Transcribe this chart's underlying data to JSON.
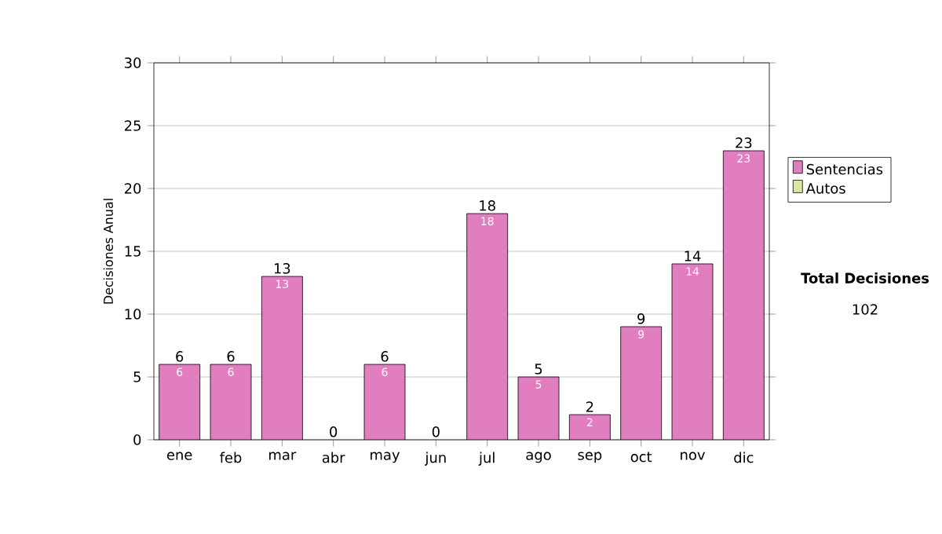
{
  "chart_data": {
    "type": "bar",
    "ylabel": "Decisiones Anual",
    "categories": [
      "ene",
      "feb",
      "mar",
      "abr",
      "may",
      "jun",
      "jul",
      "ago",
      "sep",
      "oct",
      "nov",
      "dic"
    ],
    "stacked": true,
    "series": [
      {
        "name": "Sentencias",
        "color": "#e07ec0",
        "values": [
          6,
          6,
          13,
          0,
          6,
          0,
          18,
          5,
          2,
          9,
          14,
          23
        ],
        "value_labels": [
          "6",
          "6",
          "13",
          null,
          "6",
          null,
          "18",
          "5",
          "2",
          "9",
          "14",
          "23"
        ]
      },
      {
        "name": "Autos",
        "color": "#d8e8a0",
        "values": [
          0,
          0,
          0,
          0,
          0,
          0,
          0,
          0,
          0,
          0,
          0,
          0
        ]
      }
    ],
    "totals": [
      "6",
      "6",
      "13",
      "0",
      "6",
      "0",
      "18",
      "5",
      "2",
      "9",
      "14",
      "23"
    ],
    "ylim": [
      0,
      30
    ],
    "yticks": [
      0,
      5,
      10,
      15,
      20,
      25,
      30
    ],
    "grid": "y",
    "legend": "right",
    "annotations": [
      "**Total Decisiones**",
      "102"
    ]
  }
}
